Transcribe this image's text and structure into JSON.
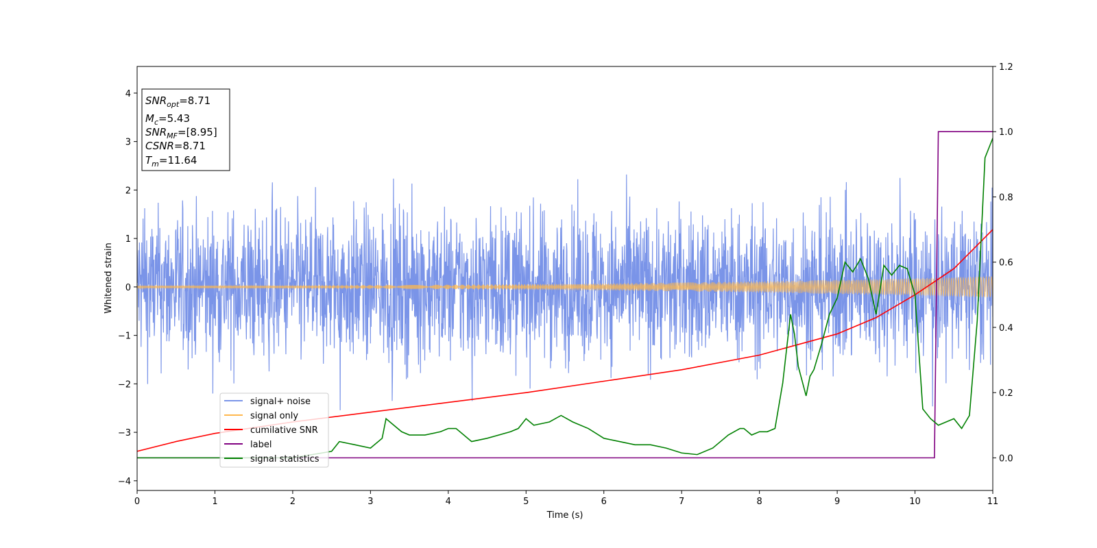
{
  "chart_data": {
    "type": "line",
    "title": "",
    "xlabel": "Time (s)",
    "ylabel": "Whitened strain",
    "xlim": [
      0,
      11
    ],
    "ylim": [
      -4.2,
      4.55
    ],
    "y2lim": [
      -0.1,
      1.2
    ],
    "xticks": [
      "0",
      "1",
      "2",
      "3",
      "4",
      "5",
      "6",
      "7",
      "8",
      "9",
      "10",
      "11"
    ],
    "yticks": [
      "4",
      "3",
      "2",
      "1",
      "0",
      "−1",
      "−2",
      "−3",
      "−4"
    ],
    "y2ticks": [
      "1.2",
      "1.0",
      "0.8",
      "0.6",
      "0.4",
      "0.2",
      "0.0"
    ],
    "grid": false,
    "legend_position": "lower-left",
    "series": [
      {
        "name": "signal+ noise",
        "axis": "left",
        "color": "#7a94e8",
        "kind": "noise",
        "envelope": [
          1.3,
          3.5
        ]
      },
      {
        "name": "signal only",
        "axis": "left",
        "color": "#ffb84d",
        "kind": "chirp",
        "amplitude": [
          0.03,
          0.22
        ]
      },
      {
        "name": "cumilative SNR",
        "axis": "right",
        "color": "#ff0000",
        "x": [
          0,
          0.5,
          1,
          2,
          3,
          4,
          5,
          6,
          7,
          8,
          9,
          9.5,
          10,
          10.5,
          11
        ],
        "y": [
          0.02,
          0.05,
          0.075,
          0.11,
          0.14,
          0.17,
          0.2,
          0.235,
          0.27,
          0.315,
          0.38,
          0.43,
          0.5,
          0.58,
          0.7
        ]
      },
      {
        "name": "label",
        "axis": "right",
        "color": "#800080",
        "x": [
          0,
          10.25,
          10.3,
          11
        ],
        "y": [
          0,
          0,
          1,
          1
        ]
      },
      {
        "name": "signal statistics",
        "axis": "right",
        "color": "#008000",
        "x": [
          0,
          1,
          2,
          2.5,
          2.6,
          2.8,
          3.0,
          3.15,
          3.2,
          3.4,
          3.5,
          3.7,
          3.9,
          4.0,
          4.1,
          4.3,
          4.5,
          4.8,
          4.9,
          5.0,
          5.1,
          5.3,
          5.45,
          5.6,
          5.8,
          6.0,
          6.2,
          6.4,
          6.6,
          6.8,
          7.0,
          7.2,
          7.4,
          7.6,
          7.75,
          7.8,
          7.9,
          8.0,
          8.1,
          8.2,
          8.3,
          8.4,
          8.45,
          8.5,
          8.6,
          8.65,
          8.7,
          8.8,
          8.9,
          9.0,
          9.1,
          9.2,
          9.3,
          9.4,
          9.5,
          9.6,
          9.7,
          9.8,
          9.9,
          10.0,
          10.1,
          10.2,
          10.3,
          10.4,
          10.5,
          10.6,
          10.7,
          10.8,
          10.9,
          11.0
        ],
        "y": [
          0,
          0,
          0,
          0.02,
          0.05,
          0.04,
          0.03,
          0.06,
          0.12,
          0.08,
          0.07,
          0.07,
          0.08,
          0.09,
          0.09,
          0.05,
          0.06,
          0.08,
          0.09,
          0.12,
          0.1,
          0.11,
          0.13,
          0.11,
          0.09,
          0.06,
          0.05,
          0.04,
          0.04,
          0.03,
          0.015,
          0.01,
          0.03,
          0.07,
          0.09,
          0.09,
          0.07,
          0.08,
          0.08,
          0.09,
          0.23,
          0.44,
          0.38,
          0.28,
          0.19,
          0.25,
          0.27,
          0.35,
          0.44,
          0.49,
          0.6,
          0.57,
          0.61,
          0.55,
          0.44,
          0.59,
          0.56,
          0.59,
          0.58,
          0.5,
          0.15,
          0.12,
          0.1,
          0.11,
          0.12,
          0.09,
          0.13,
          0.42,
          0.92,
          0.98
        ]
      }
    ]
  },
  "infobox": {
    "snr_opt": {
      "main": "SNR",
      "sub": "opt",
      "value": "=8.71"
    },
    "mc": {
      "main": "M",
      "sub": "c",
      "value": "=5.43"
    },
    "snr_mf": {
      "main": "SNR",
      "sub": "MF",
      "value": "=[8.95]"
    },
    "csnr": {
      "main": "CSNR",
      "sub": "",
      "value": "=8.71"
    },
    "tm": {
      "main": "T",
      "sub": "m",
      "value": "=11.64"
    }
  }
}
